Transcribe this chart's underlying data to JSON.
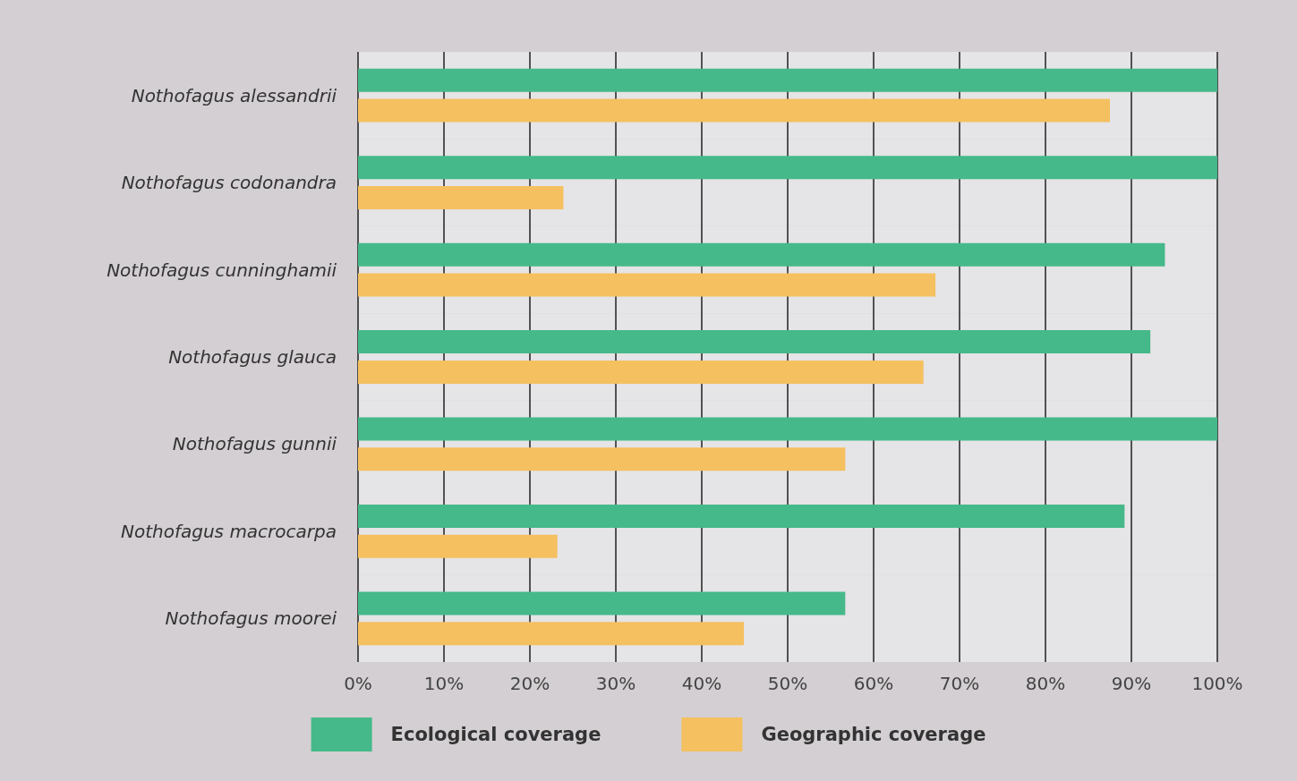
{
  "chart_data": {
    "type": "bar",
    "orientation": "horizontal",
    "categories": [
      "Nothofagus alessandrii",
      "Nothofagus codonandra",
      "Nothofagus cunninghamii",
      "Nothofagus glauca",
      "Nothofagus gunnii",
      "Nothofagus macrocarpa",
      "Nothofagus moorei"
    ],
    "series": [
      {
        "name": "Ecological coverage",
        "color": "#45b98a",
        "values": [
          100,
          100,
          93.9,
          92.2,
          100,
          89.2,
          56.7
        ]
      },
      {
        "name": "Geographic coverage",
        "color": "#f5c060",
        "values": [
          87.5,
          23.9,
          67.2,
          65.8,
          56.7,
          23.2,
          44.9
        ]
      }
    ],
    "xlim": [
      0,
      100
    ],
    "xticks": [
      {
        "value": 0,
        "label": "0%"
      },
      {
        "value": 10,
        "label": "10%"
      },
      {
        "value": 20,
        "label": "20%"
      },
      {
        "value": 30,
        "label": "30%"
      },
      {
        "value": 40,
        "label": "40%"
      },
      {
        "value": 50,
        "label": "50%"
      },
      {
        "value": 60,
        "label": "60%"
      },
      {
        "value": 70,
        "label": "70%"
      },
      {
        "value": 80,
        "label": "80%"
      },
      {
        "value": 90,
        "label": "90%"
      },
      {
        "value": 100,
        "label": "100%"
      }
    ],
    "grid": "x",
    "legend": "bottom"
  }
}
